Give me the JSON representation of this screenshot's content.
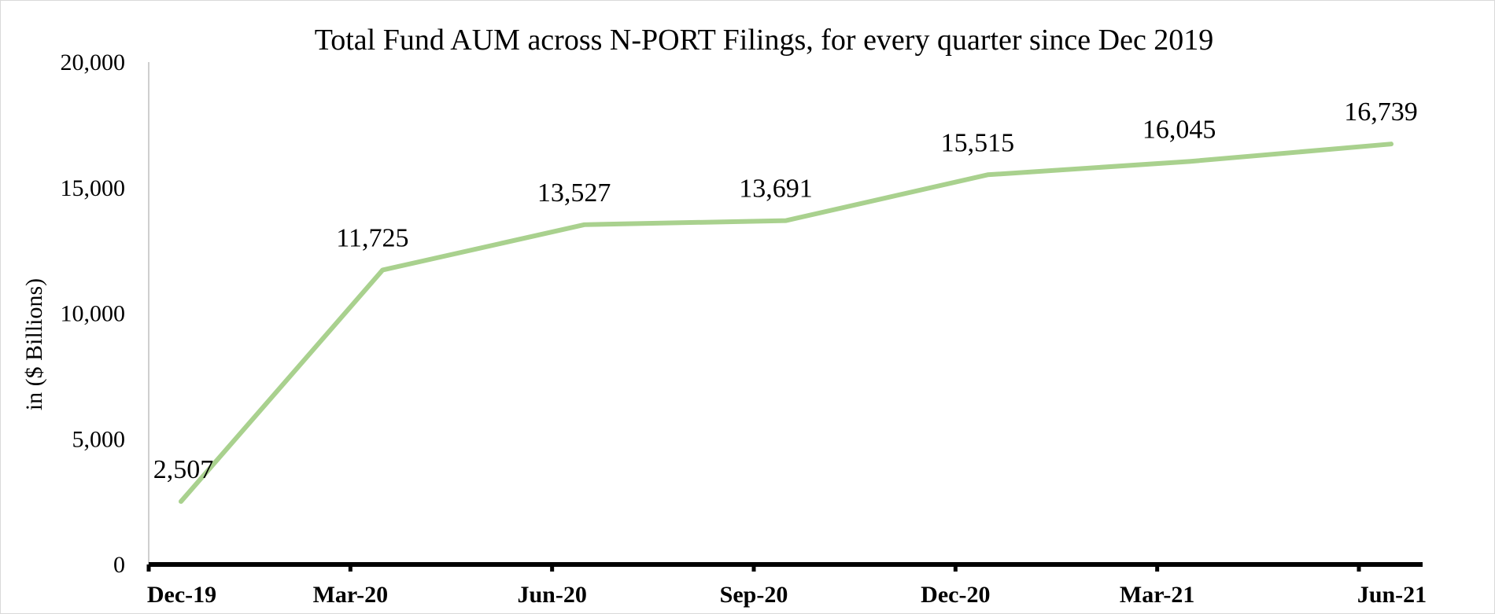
{
  "chart_data": {
    "type": "line",
    "title": "Total Fund AUM across N-PORT Filings, for every quarter since Dec 2019",
    "xlabel": "",
    "ylabel": "in ($ Billions)",
    "categories": [
      "Dec-19",
      "Mar-20",
      "Jun-20",
      "Sep-20",
      "Dec-20",
      "Mar-21",
      "Jun-21"
    ],
    "series": [
      {
        "values": [
          2507,
          11725,
          13527,
          13691,
          15515,
          16045,
          16739
        ],
        "data_labels": [
          "2,507",
          "11,725",
          "13,527",
          "13,691",
          "15,515",
          "16,045",
          "16,739"
        ],
        "color": "#a9d18e"
      }
    ],
    "ylim": [
      0,
      20000
    ],
    "yticks": [
      0,
      5000,
      10000,
      15000,
      20000
    ],
    "ytick_labels": [
      "0",
      "5,000",
      "10,000",
      "15,000",
      "20,000"
    ],
    "grid": false,
    "legend": "none"
  }
}
